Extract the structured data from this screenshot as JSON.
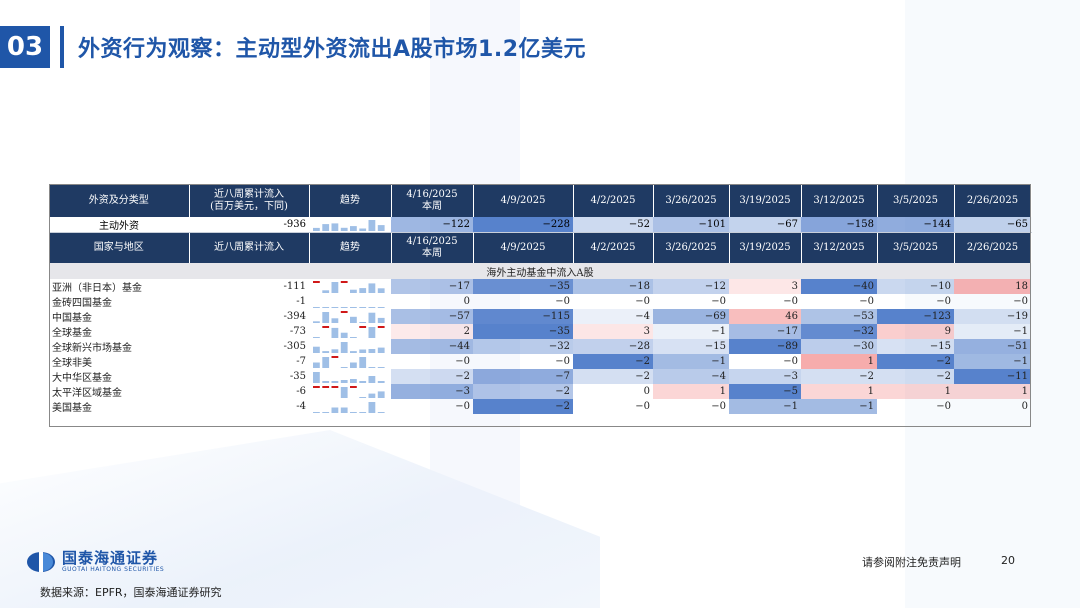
{
  "header": {
    "section_number": "03",
    "title": "外资行为观察：主动型外资流出A股市场1.2亿美元"
  },
  "table": {
    "top_header": {
      "label": "外资及分类型",
      "cum": "近八周累计流入\n(百万美元，下同)",
      "trend": "趋势",
      "dates": [
        "4/16/2025\n本周",
        "4/9/2025",
        "4/2/2025",
        "3/26/2025",
        "3/19/2025",
        "3/12/2025",
        "3/5/2025",
        "2/26/2025"
      ]
    },
    "main_row": {
      "name": "主动外资",
      "cum": "-936",
      "values": [
        -122,
        -228,
        -52,
        -101,
        -67,
        -158,
        -144,
        -65
      ]
    },
    "second_header": {
      "label": "国家与地区",
      "cum": "近八周累计流入",
      "trend": "趋势",
      "dates": [
        "4/16/2025\n本周",
        "4/9/2025",
        "4/2/2025",
        "3/26/2025",
        "3/19/2025",
        "3/12/2025",
        "3/5/2025",
        "2/26/2025"
      ]
    },
    "subtitle": "海外主动基金中流入A股",
    "rows": [
      {
        "name": "亚洲（非日本）基金",
        "cum": "-111",
        "values": [
          -17,
          -35,
          -18,
          -12,
          3,
          -40,
          -10,
          18
        ]
      },
      {
        "name": "金砖四国基金",
        "cum": "-1",
        "values": [
          0,
          0,
          0,
          0,
          0,
          0,
          0,
          0
        ]
      },
      {
        "name": "中国基金",
        "cum": "-394",
        "values": [
          -57,
          -115,
          -4,
          -69,
          46,
          -53,
          -123,
          -19
        ]
      },
      {
        "name": "全球基金",
        "cum": "-73",
        "values": [
          2,
          -35,
          3,
          -1,
          -17,
          -32,
          9,
          -1
        ]
      },
      {
        "name": "全球新兴市场基金",
        "cum": "-305",
        "values": [
          -44,
          -32,
          -28,
          -15,
          -89,
          -30,
          -15,
          -51
        ]
      },
      {
        "name": "全球非美",
        "cum": "-7",
        "values": [
          0,
          0,
          -2,
          -1,
          0,
          1,
          -2,
          -1
        ]
      },
      {
        "name": "大中华区基金",
        "cum": "-35",
        "values": [
          -2,
          -7,
          -2,
          -4,
          -3,
          -2,
          -2,
          -11
        ]
      },
      {
        "name": "太平洋区域基金",
        "cum": "-6",
        "values": [
          -3,
          -2,
          0,
          1,
          -5,
          1,
          1,
          1
        ]
      },
      {
        "name": "美国基金",
        "cum": "-4",
        "values": [
          0,
          -2,
          0,
          0,
          -1,
          -1,
          0,
          0
        ]
      }
    ],
    "colors": {
      "negative": "#4a78c8",
      "positive": "#ee5a5a",
      "spark_negative": "#9fbfe6",
      "spark_positive": "#d01818"
    }
  },
  "footer": {
    "logo_cn": "国泰海通证券",
    "logo_en": "GUOTAI HAITONG SECURITIES",
    "disclaimer": "请参阅附注免责声明",
    "page_number": "20",
    "source": "数据来源：EPFR，国泰海通证券研究"
  }
}
